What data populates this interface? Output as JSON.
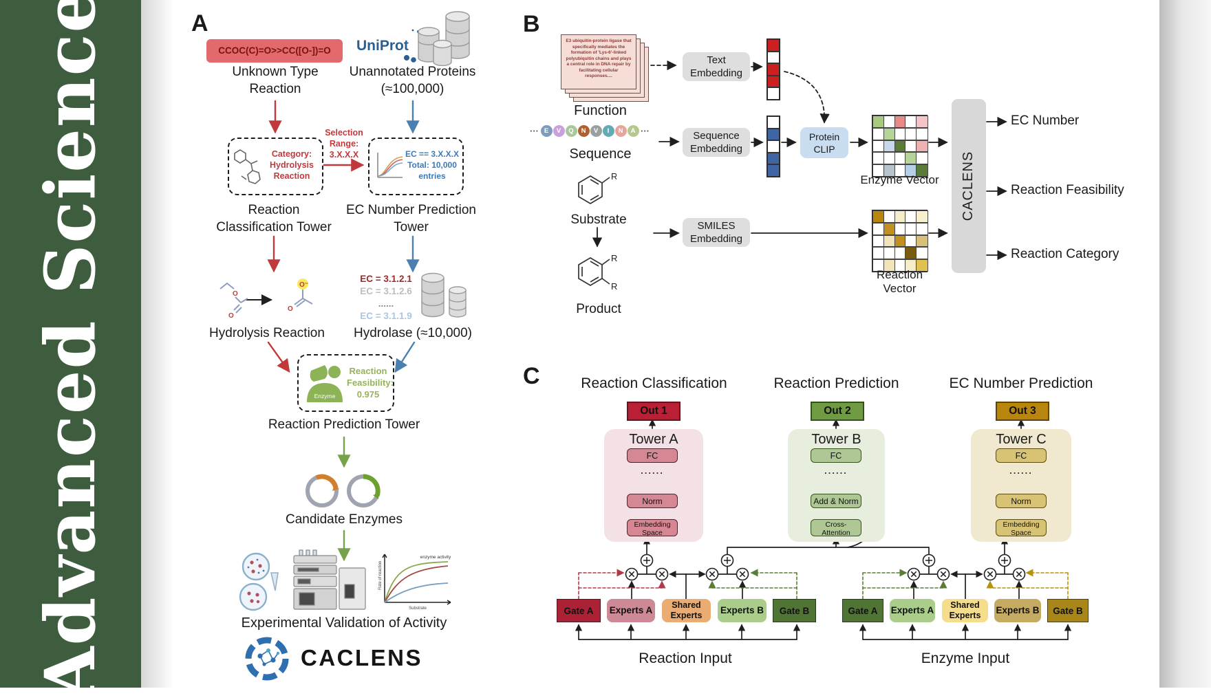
{
  "journal": {
    "name": "Advanced Science"
  },
  "colors": {
    "journal_green": "#3e5c3e",
    "arrow_red": "#c03a3c",
    "arrow_blue": "#4a80b0",
    "arrow_green": "#76a34a",
    "out1": "#b92035",
    "out2": "#6f9c42",
    "out3": "#b8860e",
    "towerA_bg": "#f3e1e5",
    "towerB_bg": "#e7eede",
    "towerC_bg": "#f0e9cf",
    "gateA_left": "#ab2135",
    "gateB_left": "#4f7434",
    "gateA_right": "#4f7434",
    "gateB_right": "#a9861a",
    "protein_clip": "#c9ddf1",
    "embedding_box": "#dedede",
    "smiles_box": "#e2696c"
  },
  "panelA": {
    "label": "A",
    "smiles": "CCOC(C)=O>>CC([O-])=O",
    "unknown_reaction": "Unknown Type Reaction",
    "uniprot": "UniProt",
    "unannotated": "Unannotated Proteins (≈100,000)",
    "selection_lines": [
      "Selection",
      "Range:",
      "3.X.X.X"
    ],
    "category_lines": [
      "Category:",
      "Hydrolysis",
      "Reaction"
    ],
    "ec_box_lines": [
      "EC == 3.X.X.X",
      "Total: 10,000",
      "entries"
    ],
    "classification_tower": "Reaction Classification Tower",
    "ec_tower": "EC Number Prediction Tower",
    "hydrolysis_reaction": "Hydrolysis Reaction",
    "hydrolase": "Hydrolase (≈10,000)",
    "ec_list": [
      {
        "text": "EC = 3.1.2.1",
        "color": "#9e2b25"
      },
      {
        "text": "EC = 3.1.2.6",
        "color": "#bdbdbd"
      },
      {
        "text": "......",
        "color": "#8a8a8a"
      },
      {
        "text": "EC = 3.1.1.9",
        "color": "#aac6e2"
      }
    ],
    "enzyme_label": "Enzyme",
    "feasibility_lines": [
      "Reaction",
      "Feasibility:",
      "0.975"
    ],
    "prediction_tower": "Reaction Prediction Tower",
    "candidate_enzymes": "Candidate Enzymes",
    "activity_plot": {
      "ylabel": "Rate of reaction",
      "xlabel": "Substrate",
      "annotation": "enzyme activity"
    },
    "validation": "Experimental Validation of Activity",
    "brand": "CACLENS"
  },
  "panelB": {
    "label": "B",
    "function_card_text": "E3 ubiquitin-protein ligase that specifically mediates the formation of 'Lys-6'-linked polyubiquitin chains and plays a central role in DNA repair by facilitating cellular responses....",
    "function_label": "Function",
    "ellipsis": "···",
    "sequence_letters": [
      {
        "char": "E",
        "color": "#7e9cbd"
      },
      {
        "char": "V",
        "color": "#c9a0dc"
      },
      {
        "char": "Q",
        "color": "#a8c89a"
      },
      {
        "char": "N",
        "color": "#b06030"
      },
      {
        "char": "V",
        "color": "#9aa0a0"
      },
      {
        "char": "I",
        "color": "#62aab4"
      },
      {
        "char": "N",
        "color": "#e8a49a"
      },
      {
        "char": "A",
        "color": "#b5c98e"
      }
    ],
    "sequence_label": "Sequence",
    "substrate_label": "Substrate",
    "product_label": "Product",
    "r_group": "R",
    "text_embedding": "Text Embedding",
    "sequence_embedding": "Sequence Embedding",
    "smiles_embedding": "SMILES Embedding",
    "protein_clip": "Protein CLIP",
    "text_vector": [
      "#cc2020",
      "",
      "#cc2020",
      "#cc2020",
      ""
    ],
    "seq_vector": [
      "",
      "#3f65a5",
      "",
      "#3f65a5",
      "#3f65a5"
    ],
    "enzyme_vector_label": "Enzyme Vector",
    "reaction_vector_label": "Reaction Vector",
    "enzyme_vector_cells": [
      "#a9c97e",
      "",
      "#e88a8a",
      "",
      "#f2c6c6",
      "",
      "#b5d49a",
      "",
      "",
      "",
      "",
      "#c6d8ea",
      "#5a7a3a",
      "",
      "#eeb0b0",
      "",
      "",
      "",
      "#b5d49a",
      "",
      "",
      "#b8c4cc",
      "",
      "#b8cfe8",
      "#5a7a3a"
    ],
    "reaction_vector_cells": [
      "#b8860b",
      "",
      "#f5ecca",
      "",
      "#f7efd0",
      "",
      "#c09020",
      "",
      "",
      "",
      "",
      "#f0e4b8",
      "#c09020",
      "",
      "#d8c078",
      "",
      "",
      "",
      "#7a5c10",
      "",
      "",
      "#f0e4b8",
      "",
      "#f5ecca",
      "#e0c050"
    ],
    "caclens": "CACLENS",
    "outputs": [
      "EC Number",
      "Reaction Feasibility",
      "Reaction Category"
    ]
  },
  "panelC": {
    "label": "C",
    "columns": [
      {
        "title": "Reaction Classification",
        "out": "Out 1",
        "tower": "Tower A",
        "layers": [
          "FC",
          "......",
          "Norm",
          "Embedding Space"
        ]
      },
      {
        "title": "Reaction Prediction",
        "out": "Out 2",
        "tower": "Tower B",
        "layers": [
          "FC",
          "......",
          "Add & Norm",
          "Cross-Attention"
        ]
      },
      {
        "title": "EC Number Prediction",
        "out": "Out 3",
        "tower": "Tower C",
        "layers": [
          "FC",
          "......",
          "Norm",
          "Embedding Space"
        ]
      }
    ],
    "moe_left": {
      "boxes": [
        "Gate A",
        "Experts A",
        "Shared Experts",
        "Experts B",
        "Gate B"
      ],
      "input_label": "Reaction Input"
    },
    "moe_right": {
      "boxes": [
        "Gate A",
        "Experts A",
        "Shared Experts",
        "Experts B",
        "Gate B"
      ],
      "input_label": "Enzyme Input"
    }
  }
}
